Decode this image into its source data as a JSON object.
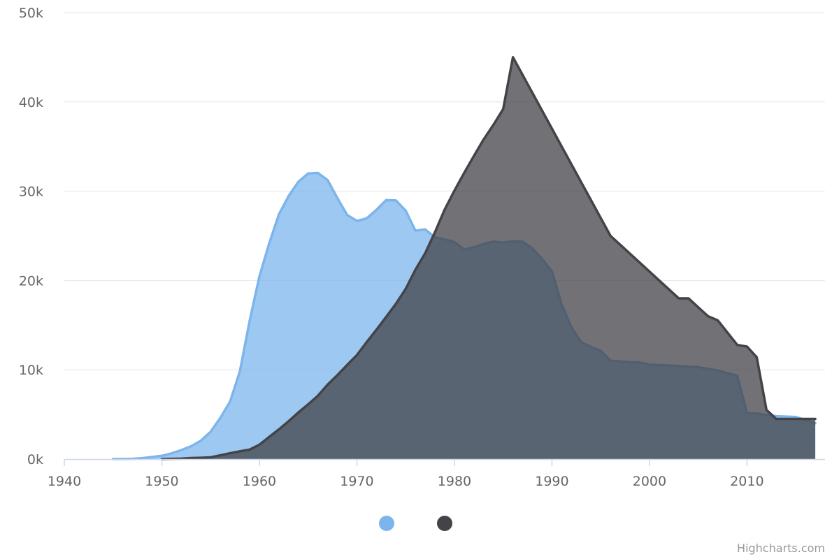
{
  "chart_data": {
    "type": "area",
    "credit": "Highcharts.com",
    "xlim": [
      1940,
      2018
    ],
    "ylim": [
      0,
      50000
    ],
    "x_ticks": [
      1940,
      1950,
      1960,
      1970,
      1980,
      1990,
      2000,
      2010
    ],
    "x_tick_labels": [
      "1940",
      "1950",
      "1960",
      "1970",
      "1980",
      "1990",
      "2000",
      "2010"
    ],
    "y_ticks": [
      0,
      10000,
      20000,
      30000,
      40000,
      50000
    ],
    "y_tick_labels": [
      "0k",
      "10k",
      "20k",
      "30k",
      "40k",
      "50k"
    ],
    "grid": true,
    "legend_position": "bottom-center",
    "series": [
      {
        "color": "#7cb5ec",
        "x": [
          1945,
          1946,
          1947,
          1948,
          1949,
          1950,
          1951,
          1952,
          1953,
          1954,
          1955,
          1956,
          1957,
          1958,
          1959,
          1960,
          1961,
          1962,
          1963,
          1964,
          1965,
          1966,
          1967,
          1968,
          1969,
          1970,
          1971,
          1972,
          1973,
          1974,
          1975,
          1976,
          1977,
          1978,
          1979,
          1980,
          1981,
          1982,
          1983,
          1984,
          1985,
          1986,
          1987,
          1988,
          1989,
          1990,
          1991,
          1992,
          1993,
          1994,
          1995,
          1996,
          1997,
          1998,
          1999,
          2000,
          2001,
          2002,
          2003,
          2004,
          2005,
          2006,
          2007,
          2008,
          2009,
          2010,
          2011,
          2012,
          2013,
          2014,
          2015,
          2016,
          2017
        ],
        "values": [
          6,
          11,
          32,
          110,
          235,
          369,
          640,
          1005,
          1436,
          2063,
          3057,
          4618,
          6444,
          9822,
          15468,
          20434,
          24126,
          27387,
          29459,
          31056,
          31982,
          32040,
          31233,
          29224,
          27342,
          26662,
          26956,
          27912,
          28999,
          28965,
          27826,
          25579,
          25722,
          24826,
          24605,
          24304,
          23464,
          23708,
          24099,
          24357,
          24237,
          24401,
          24344,
          23586,
          22380,
          21004,
          17287,
          14747,
          13076,
          12555,
          12144,
          11009,
          10950,
          10871,
          10824,
          10577,
          10527,
          10475,
          10421,
          10358,
          10295,
          10104,
          9914,
          9620,
          9326,
          5113,
          5113,
          4954,
          4804,
          4761,
          4717,
          4368,
          4018
        ]
      },
      {
        "color": "#434348",
        "x": [
          1950,
          1951,
          1952,
          1953,
          1954,
          1955,
          1956,
          1957,
          1958,
          1959,
          1960,
          1961,
          1962,
          1963,
          1964,
          1965,
          1966,
          1967,
          1968,
          1969,
          1970,
          1971,
          1972,
          1973,
          1974,
          1975,
          1976,
          1977,
          1978,
          1979,
          1980,
          1981,
          1982,
          1983,
          1984,
          1985,
          1986,
          1987,
          1988,
          1989,
          1990,
          1991,
          1992,
          1993,
          1994,
          1995,
          1996,
          1997,
          1998,
          1999,
          2000,
          2001,
          2002,
          2003,
          2004,
          2005,
          2006,
          2007,
          2008,
          2009,
          2010,
          2011,
          2012,
          2013,
          2014,
          2015,
          2016,
          2017
        ],
        "values": [
          5,
          25,
          50,
          120,
          150,
          200,
          426,
          660,
          869,
          1060,
          1605,
          2471,
          3322,
          4238,
          5221,
          6129,
          7089,
          8339,
          9399,
          10538,
          11643,
          13092,
          14478,
          15915,
          17385,
          19055,
          21205,
          23044,
          25393,
          27935,
          30062,
          32049,
          33952,
          35804,
          37431,
          39197,
          45000,
          43000,
          41000,
          39000,
          37000,
          35000,
          33000,
          31000,
          29000,
          27000,
          25000,
          24000,
          23000,
          22000,
          21000,
          20000,
          19000,
          18000,
          18000,
          17000,
          16000,
          15537,
          14162,
          12787,
          12600,
          11400,
          5500,
          4500,
          4500,
          4500,
          4500,
          4500
        ]
      }
    ]
  }
}
